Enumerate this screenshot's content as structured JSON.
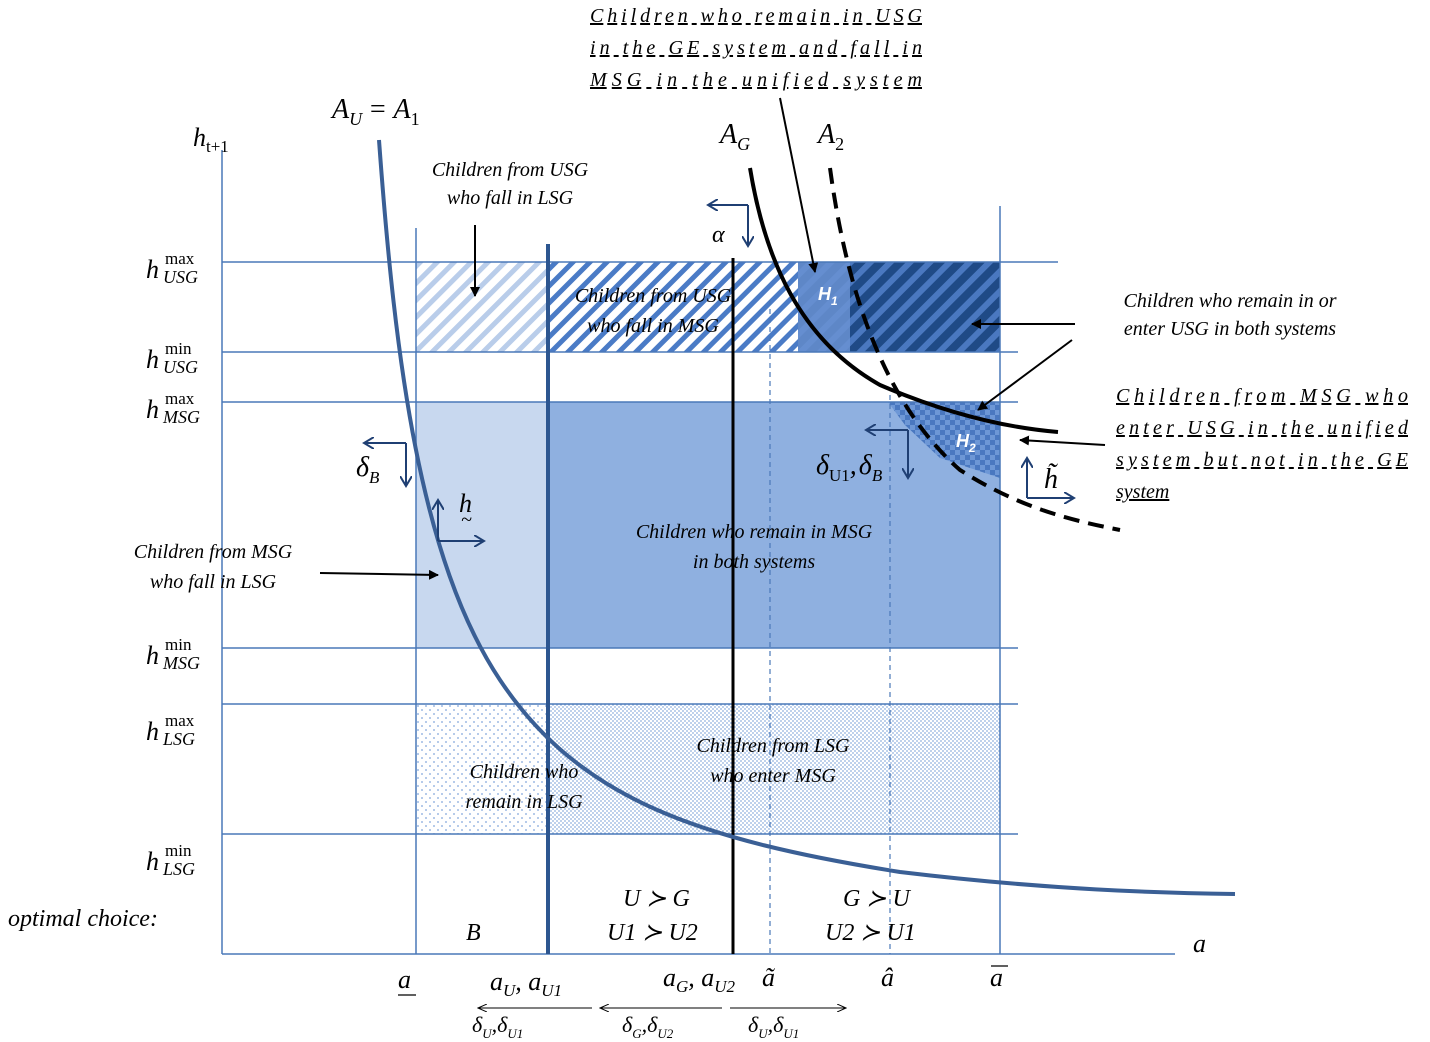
{
  "axes": {
    "y_label": "h",
    "y_label_sub": "t+1",
    "x_label": "a"
  },
  "h_levels": [
    {
      "sup": "max",
      "sub": "USG"
    },
    {
      "sup": "min",
      "sub": "USG"
    },
    {
      "sup": "max",
      "sub": "MSG"
    },
    {
      "sup": "min",
      "sub": "MSG"
    },
    {
      "sup": "max",
      "sub": "LSG"
    },
    {
      "sup": "min",
      "sub": "LSG"
    }
  ],
  "curves": {
    "au_label": "A",
    "au_sub": "U",
    "au_eq": "= A",
    "au_eq_sub": "1",
    "ag_label": "A",
    "ag_sub": "G",
    "a2_label": "A",
    "a2_sub": "2"
  },
  "x_ticks": {
    "a_low": "a",
    "au": "a",
    "au_sub": "U",
    "au1": ", a",
    "au1_sub": "U1",
    "ag": "a",
    "ag_sub": "G",
    "au2": ", a",
    "au2_sub": "U2",
    "a_tilde": "ã",
    "a_hat": "â",
    "a_bar": "a"
  },
  "x_deltas": [
    {
      "a": "δ",
      "a_sub": "U",
      "sep": ",",
      "b": "δ",
      "b_sub": "U1"
    },
    {
      "a": "δ",
      "a_sub": "G",
      "sep": ",",
      "b": "δ",
      "b_sub": "U2"
    },
    {
      "a": "δ",
      "a_sub": "U",
      "sep": ",",
      "b": "δ",
      "b_sub": "U1"
    }
  ],
  "regions": {
    "optimal_choice": "optimal choice:",
    "b_label": "B",
    "u_over_g_1": "U ≻ G",
    "u_over_g_2": "U1 ≻ U2",
    "g_over_u_1": "G ≻ U",
    "g_over_u_2": "U2 ≻ U1"
  },
  "annotations": {
    "top_underlined": [
      "Children who remain in USG",
      "in the GE system and fall in",
      "MSG in the unified system"
    ],
    "usg_to_lsg": [
      "Children from USG",
      "who fall in LSG"
    ],
    "usg_to_msg": [
      "Children from USG",
      "who fall in MSG"
    ],
    "remain_usg": [
      "Children who remain in or",
      "enter USG in both systems"
    ],
    "msg_to_usg_underlined": [
      "Children from MSG who",
      "enter USG in the unified",
      "system but not in the GE",
      "system"
    ],
    "remain_msg": [
      "Children who remain in MSG",
      "in both systems"
    ],
    "msg_to_lsg": [
      "Children from MSG",
      "who fall in LSG"
    ],
    "lsg_to_msg": [
      "Children from LSG",
      "who enter MSG"
    ],
    "remain_lsg": [
      "Children who",
      "remain in LSG"
    ]
  },
  "tags": {
    "h1": "H",
    "h1_sub": "1",
    "h2": "H",
    "h2_sub": "2"
  },
  "shift_labels": {
    "alpha": "α",
    "delta_b": "δ",
    "delta_b_sub": "B",
    "h_tilde_below": "h",
    "delta_u1": "δ",
    "delta_u1_sub": "U1",
    "delta_u1_sep": ",",
    "delta_u1_b": "δ",
    "delta_u1_b_sub": "B",
    "h_tilde": "h̃"
  },
  "colors": {
    "frame_blue": "#4a78b8",
    "curve_blue": "#3a5f95",
    "msg_dark": "#8fb0e0",
    "msg_light": "#c8d8ef",
    "usg_dark": "#254f8c",
    "stripe_blue": "#4a7bc6"
  }
}
